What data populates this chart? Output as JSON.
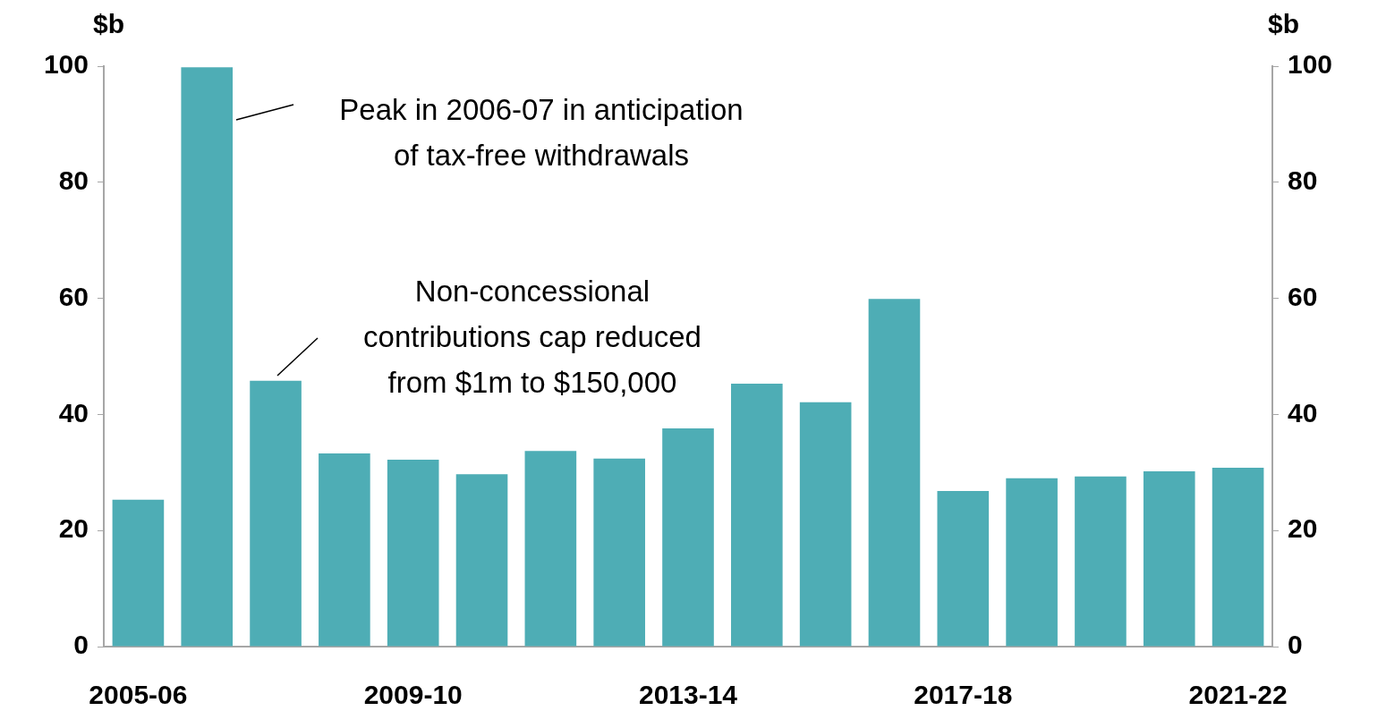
{
  "chart_data": {
    "type": "bar",
    "categories": [
      "2005-06",
      null,
      null,
      null,
      "2009-10",
      null,
      null,
      null,
      "2013-14",
      null,
      null,
      null,
      "2017-18",
      null,
      null,
      null,
      "2021-22"
    ],
    "values": [
      25.3,
      99.8,
      45.8,
      33.3,
      32.2,
      29.7,
      33.7,
      32.4,
      37.6,
      45.3,
      42.1,
      59.9,
      26.8,
      29.0,
      29.3,
      30.2,
      30.8
    ],
    "color": "#4eadb5",
    "ylabel": "$b",
    "y2label": "$b",
    "ylim": [
      0,
      100
    ],
    "yticks": [
      0,
      20,
      40,
      60,
      80,
      100
    ],
    "y2lim": [
      0,
      100
    ],
    "y2ticks": [
      0,
      20,
      40,
      60,
      80,
      100
    ],
    "annotations": [
      "Peak in 2006-07 in anticipation of tax-free withdrawals",
      "Non-concessional contributions cap reduced from $1m to $150,000"
    ]
  }
}
